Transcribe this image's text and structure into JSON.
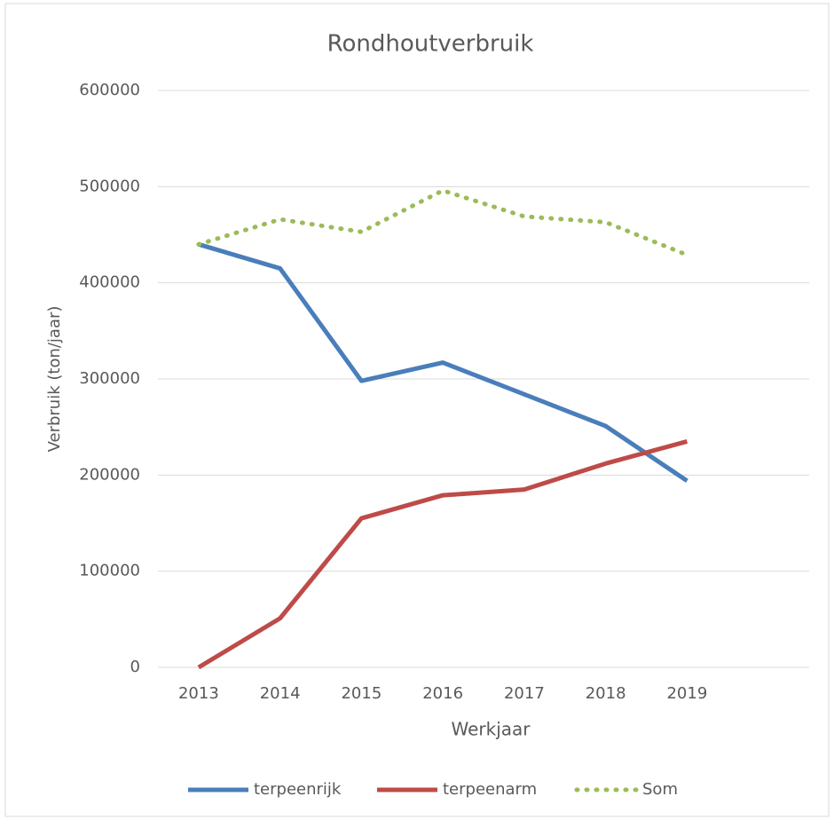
{
  "chart_data": {
    "type": "line",
    "title": "Rondhoutverbruik",
    "x_label": "Werkjaar",
    "y_label": "Verbruik (ton/jaar)",
    "categories": [
      "2013",
      "2014",
      "2015",
      "2016",
      "2017",
      "2018",
      "2019",
      null
    ],
    "series": [
      {
        "name": "terpeenrijk",
        "color": "#4a7ebb",
        "line_style": "solid",
        "values": [
          440000,
          415000,
          298000,
          317000,
          284000,
          251000,
          194000,
          null
        ]
      },
      {
        "name": "terpeenarm",
        "color": "#be4b48",
        "line_style": "solid",
        "values": [
          0,
          51000,
          155000,
          179000,
          185000,
          212000,
          235000,
          null
        ]
      },
      {
        "name": "Som",
        "color": "#9bbb59",
        "line_style": "dotted",
        "values": [
          440000,
          466000,
          453000,
          496000,
          469000,
          463000,
          429000,
          null
        ]
      }
    ],
    "ylim": [
      0,
      600000
    ],
    "yticks": [
      0,
      100000,
      200000,
      300000,
      400000,
      500000,
      600000
    ],
    "grid": true,
    "legend": "bottom"
  }
}
